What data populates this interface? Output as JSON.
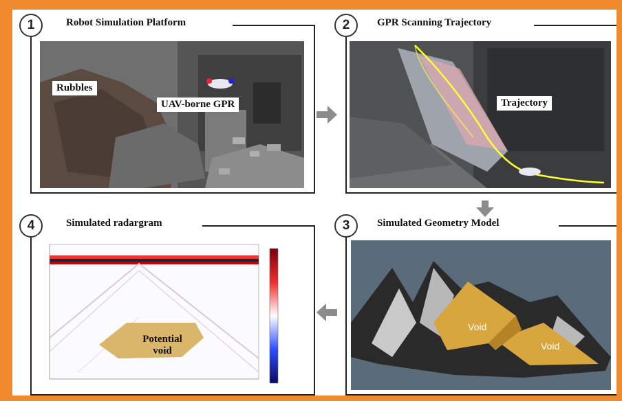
{
  "panels": [
    {
      "number": "1",
      "title": "Robot Simulation Platform",
      "labels": [
        "Rubbles",
        "UAV-borne GPR"
      ]
    },
    {
      "number": "2",
      "title": "GPR Scanning Trajectory",
      "labels": [
        "Trajectory"
      ]
    },
    {
      "number": "3",
      "title": "Simulated Geometry Model",
      "labels": [
        "Void",
        "Void"
      ]
    },
    {
      "number": "4",
      "title": "Simulated radargram",
      "labels": [
        "Potential",
        "void"
      ]
    }
  ],
  "colors": {
    "background": "#ef8a2e",
    "arrow": "#8c8c8c",
    "void_fill": "#d9b66a",
    "trajectory": "#ffff33"
  }
}
